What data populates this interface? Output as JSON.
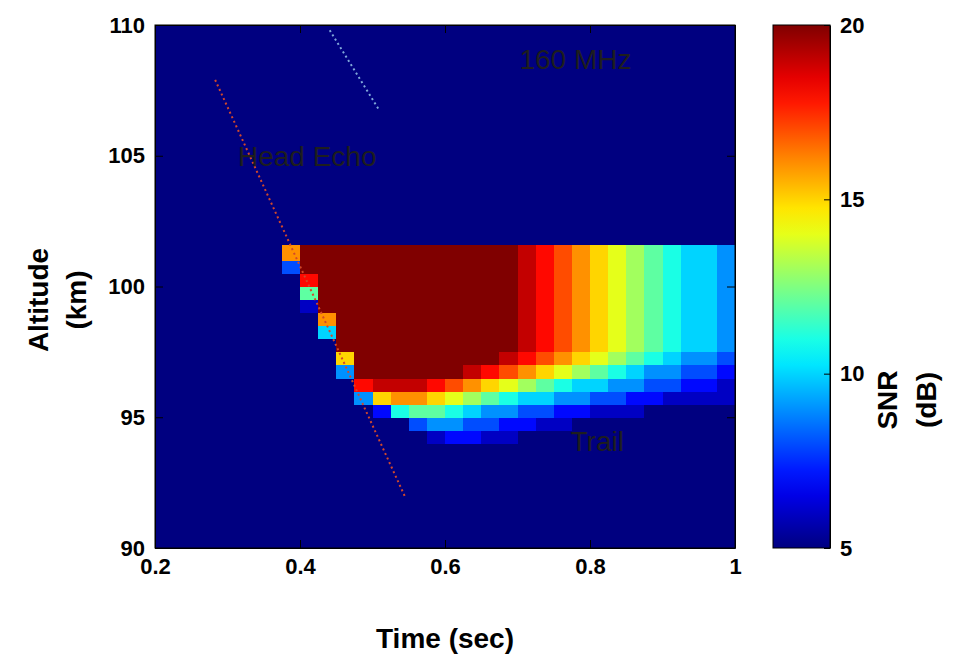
{
  "chart_data": {
    "type": "heatmap",
    "xlabel": "Time (sec)",
    "ylabel": [
      "Altitude",
      "(km)"
    ],
    "xlim": [
      0.2,
      1
    ],
    "ylim": [
      90,
      110
    ],
    "xticks": [
      0.2,
      0.4,
      0.6,
      0.8,
      1
    ],
    "yticks": [
      90,
      95,
      100,
      105,
      110
    ],
    "x_edges": [
      0.2,
      0.225,
      0.25,
      0.275,
      0.3,
      0.325,
      0.35,
      0.375,
      0.4,
      0.425,
      0.45,
      0.475,
      0.5,
      0.525,
      0.55,
      0.575,
      0.6,
      0.625,
      0.65,
      0.675,
      0.7,
      0.725,
      0.75,
      0.775,
      0.8,
      0.825,
      0.85,
      0.875,
      0.9,
      0.925,
      0.95,
      0.975,
      1
    ],
    "y_edges": [
      90,
      93,
      94,
      94.5,
      95,
      95.5,
      96,
      96.5,
      97,
      97.5,
      98,
      98.5,
      99,
      99.5,
      100,
      100.5,
      101,
      101.6,
      110
    ],
    "values": [
      [
        5,
        5,
        5,
        5,
        5,
        5,
        5,
        5,
        5,
        5,
        5,
        5,
        5,
        5,
        5,
        5,
        5,
        5,
        5,
        5,
        5,
        5,
        5,
        5,
        5,
        5,
        5,
        5,
        5,
        5,
        5,
        5
      ],
      [
        5,
        5,
        5,
        5,
        5,
        5,
        5,
        5,
        5,
        5,
        5,
        5,
        5,
        5,
        5,
        5,
        5,
        5,
        5,
        5,
        5,
        5,
        5,
        5,
        5,
        5,
        5,
        5,
        5,
        5,
        5,
        5
      ],
      [
        5,
        5,
        5,
        5,
        5,
        5,
        5,
        5,
        5,
        5,
        5,
        5,
        5,
        5,
        5,
        6,
        7,
        7,
        6,
        6,
        5,
        5,
        5,
        5,
        5,
        5,
        5,
        5,
        5,
        5,
        5,
        5
      ],
      [
        5,
        5,
        5,
        5,
        5,
        5,
        5,
        5,
        5,
        5,
        5,
        5,
        5,
        5,
        8,
        9,
        9,
        8,
        8,
        7,
        7,
        6,
        6,
        5,
        5,
        5,
        5,
        5,
        5,
        5,
        5,
        5
      ],
      [
        5,
        5,
        5,
        5,
        5,
        5,
        5,
        5,
        5,
        5,
        5,
        5,
        7,
        11,
        12,
        12,
        11,
        10,
        9,
        9,
        8,
        8,
        7,
        7,
        6,
        6,
        6,
        5,
        5,
        5,
        5,
        5
      ],
      [
        5,
        5,
        5,
        5,
        5,
        5,
        5,
        5,
        5,
        5,
        5,
        9,
        15,
        16,
        16,
        15,
        14,
        13,
        12,
        11,
        10,
        10,
        9,
        9,
        8,
        8,
        7,
        7,
        6,
        6,
        6,
        6
      ],
      [
        5,
        5,
        5,
        5,
        5,
        5,
        5,
        5,
        5,
        5,
        5,
        18,
        19,
        19,
        19,
        18,
        17,
        16,
        15,
        14,
        13,
        12,
        11,
        10,
        10,
        9,
        9,
        8,
        8,
        7,
        7,
        6
      ],
      [
        5,
        5,
        5,
        5,
        5,
        5,
        5,
        5,
        5,
        5,
        9,
        20,
        20,
        20,
        20,
        20,
        20,
        19,
        18,
        17,
        16,
        15,
        14,
        13,
        12,
        11,
        10,
        9,
        9,
        8,
        8,
        7
      ],
      [
        5,
        5,
        5,
        5,
        5,
        5,
        5,
        5,
        5,
        5,
        15,
        20,
        20,
        20,
        20,
        20,
        20,
        20,
        20,
        19,
        18,
        17,
        16,
        15,
        14,
        13,
        12,
        11,
        10,
        9,
        9,
        8
      ],
      [
        5,
        5,
        5,
        5,
        5,
        5,
        5,
        5,
        5,
        5,
        20,
        20,
        20,
        20,
        20,
        20,
        20,
        20,
        20,
        20,
        19,
        18,
        17,
        16,
        15,
        14,
        13,
        12,
        11,
        10,
        10,
        9
      ],
      [
        5,
        5,
        5,
        5,
        5,
        5,
        5,
        5,
        5,
        10,
        20,
        20,
        20,
        20,
        20,
        20,
        20,
        20,
        20,
        20,
        19,
        18,
        17,
        16,
        15,
        14,
        13,
        12,
        11,
        10,
        10,
        9
      ],
      [
        5,
        5,
        5,
        5,
        5,
        5,
        5,
        5,
        5,
        16,
        20,
        20,
        20,
        20,
        20,
        20,
        20,
        20,
        20,
        20,
        19,
        18,
        17,
        16,
        15,
        14,
        13,
        12,
        11,
        10,
        10,
        9
      ],
      [
        5,
        5,
        5,
        5,
        5,
        5,
        5,
        5,
        6,
        20,
        20,
        20,
        20,
        20,
        20,
        20,
        20,
        20,
        20,
        20,
        19,
        18,
        17,
        16,
        15,
        14,
        13,
        12,
        11,
        10,
        10,
        9
      ],
      [
        5,
        5,
        5,
        5,
        5,
        5,
        5,
        5,
        12,
        20,
        20,
        20,
        20,
        20,
        20,
        20,
        20,
        20,
        20,
        20,
        19,
        18,
        17,
        16,
        15,
        14,
        13,
        12,
        11,
        10,
        10,
        9
      ],
      [
        5,
        5,
        5,
        5,
        5,
        5,
        5,
        5,
        18,
        20,
        20,
        20,
        20,
        20,
        20,
        20,
        20,
        20,
        20,
        20,
        19,
        18,
        17,
        16,
        15,
        14,
        13,
        12,
        11,
        10,
        10,
        9
      ],
      [
        5,
        5,
        5,
        5,
        5,
        5,
        5,
        8,
        20,
        20,
        20,
        20,
        20,
        20,
        20,
        20,
        20,
        20,
        20,
        20,
        19,
        18,
        17,
        16,
        15,
        14,
        13,
        12,
        11,
        10,
        10,
        9
      ],
      [
        5,
        5,
        5,
        5,
        5,
        5,
        5,
        16,
        20,
        20,
        20,
        20,
        20,
        20,
        20,
        20,
        20,
        20,
        20,
        20,
        19,
        18,
        17,
        16,
        15,
        14,
        13,
        12,
        11,
        10,
        10,
        9
      ],
      [
        5,
        5,
        5,
        5,
        5,
        5,
        5,
        5,
        5,
        5,
        5,
        5,
        5,
        5,
        5,
        5,
        5,
        5,
        5,
        5,
        5,
        5,
        5,
        5,
        5,
        5,
        5,
        5,
        5,
        5,
        5,
        5
      ]
    ],
    "series": [
      {
        "type": "line",
        "x": [
          0.283,
          0.545
        ],
        "y": [
          107.9,
          91.95
        ],
        "color": "#d2482a",
        "line_style": "dotted"
      },
      {
        "type": "line",
        "x": [
          0.441,
          0.508
        ],
        "y": [
          109.8,
          106.8
        ],
        "color": "#7fa7d9",
        "line_style": "dotted"
      }
    ],
    "annotations": [
      {
        "text": "160 MHz",
        "x": 0.78,
        "y": 108.6
      },
      {
        "text": "Head Echo",
        "x": 0.41,
        "y": 104.9
      },
      {
        "text": "Trail",
        "x": 0.81,
        "y": 94
      }
    ],
    "colorbar": {
      "label": [
        "SNR",
        "(dB)"
      ],
      "range": [
        5,
        20
      ],
      "ticks": [
        5,
        10,
        15,
        20
      ]
    }
  }
}
